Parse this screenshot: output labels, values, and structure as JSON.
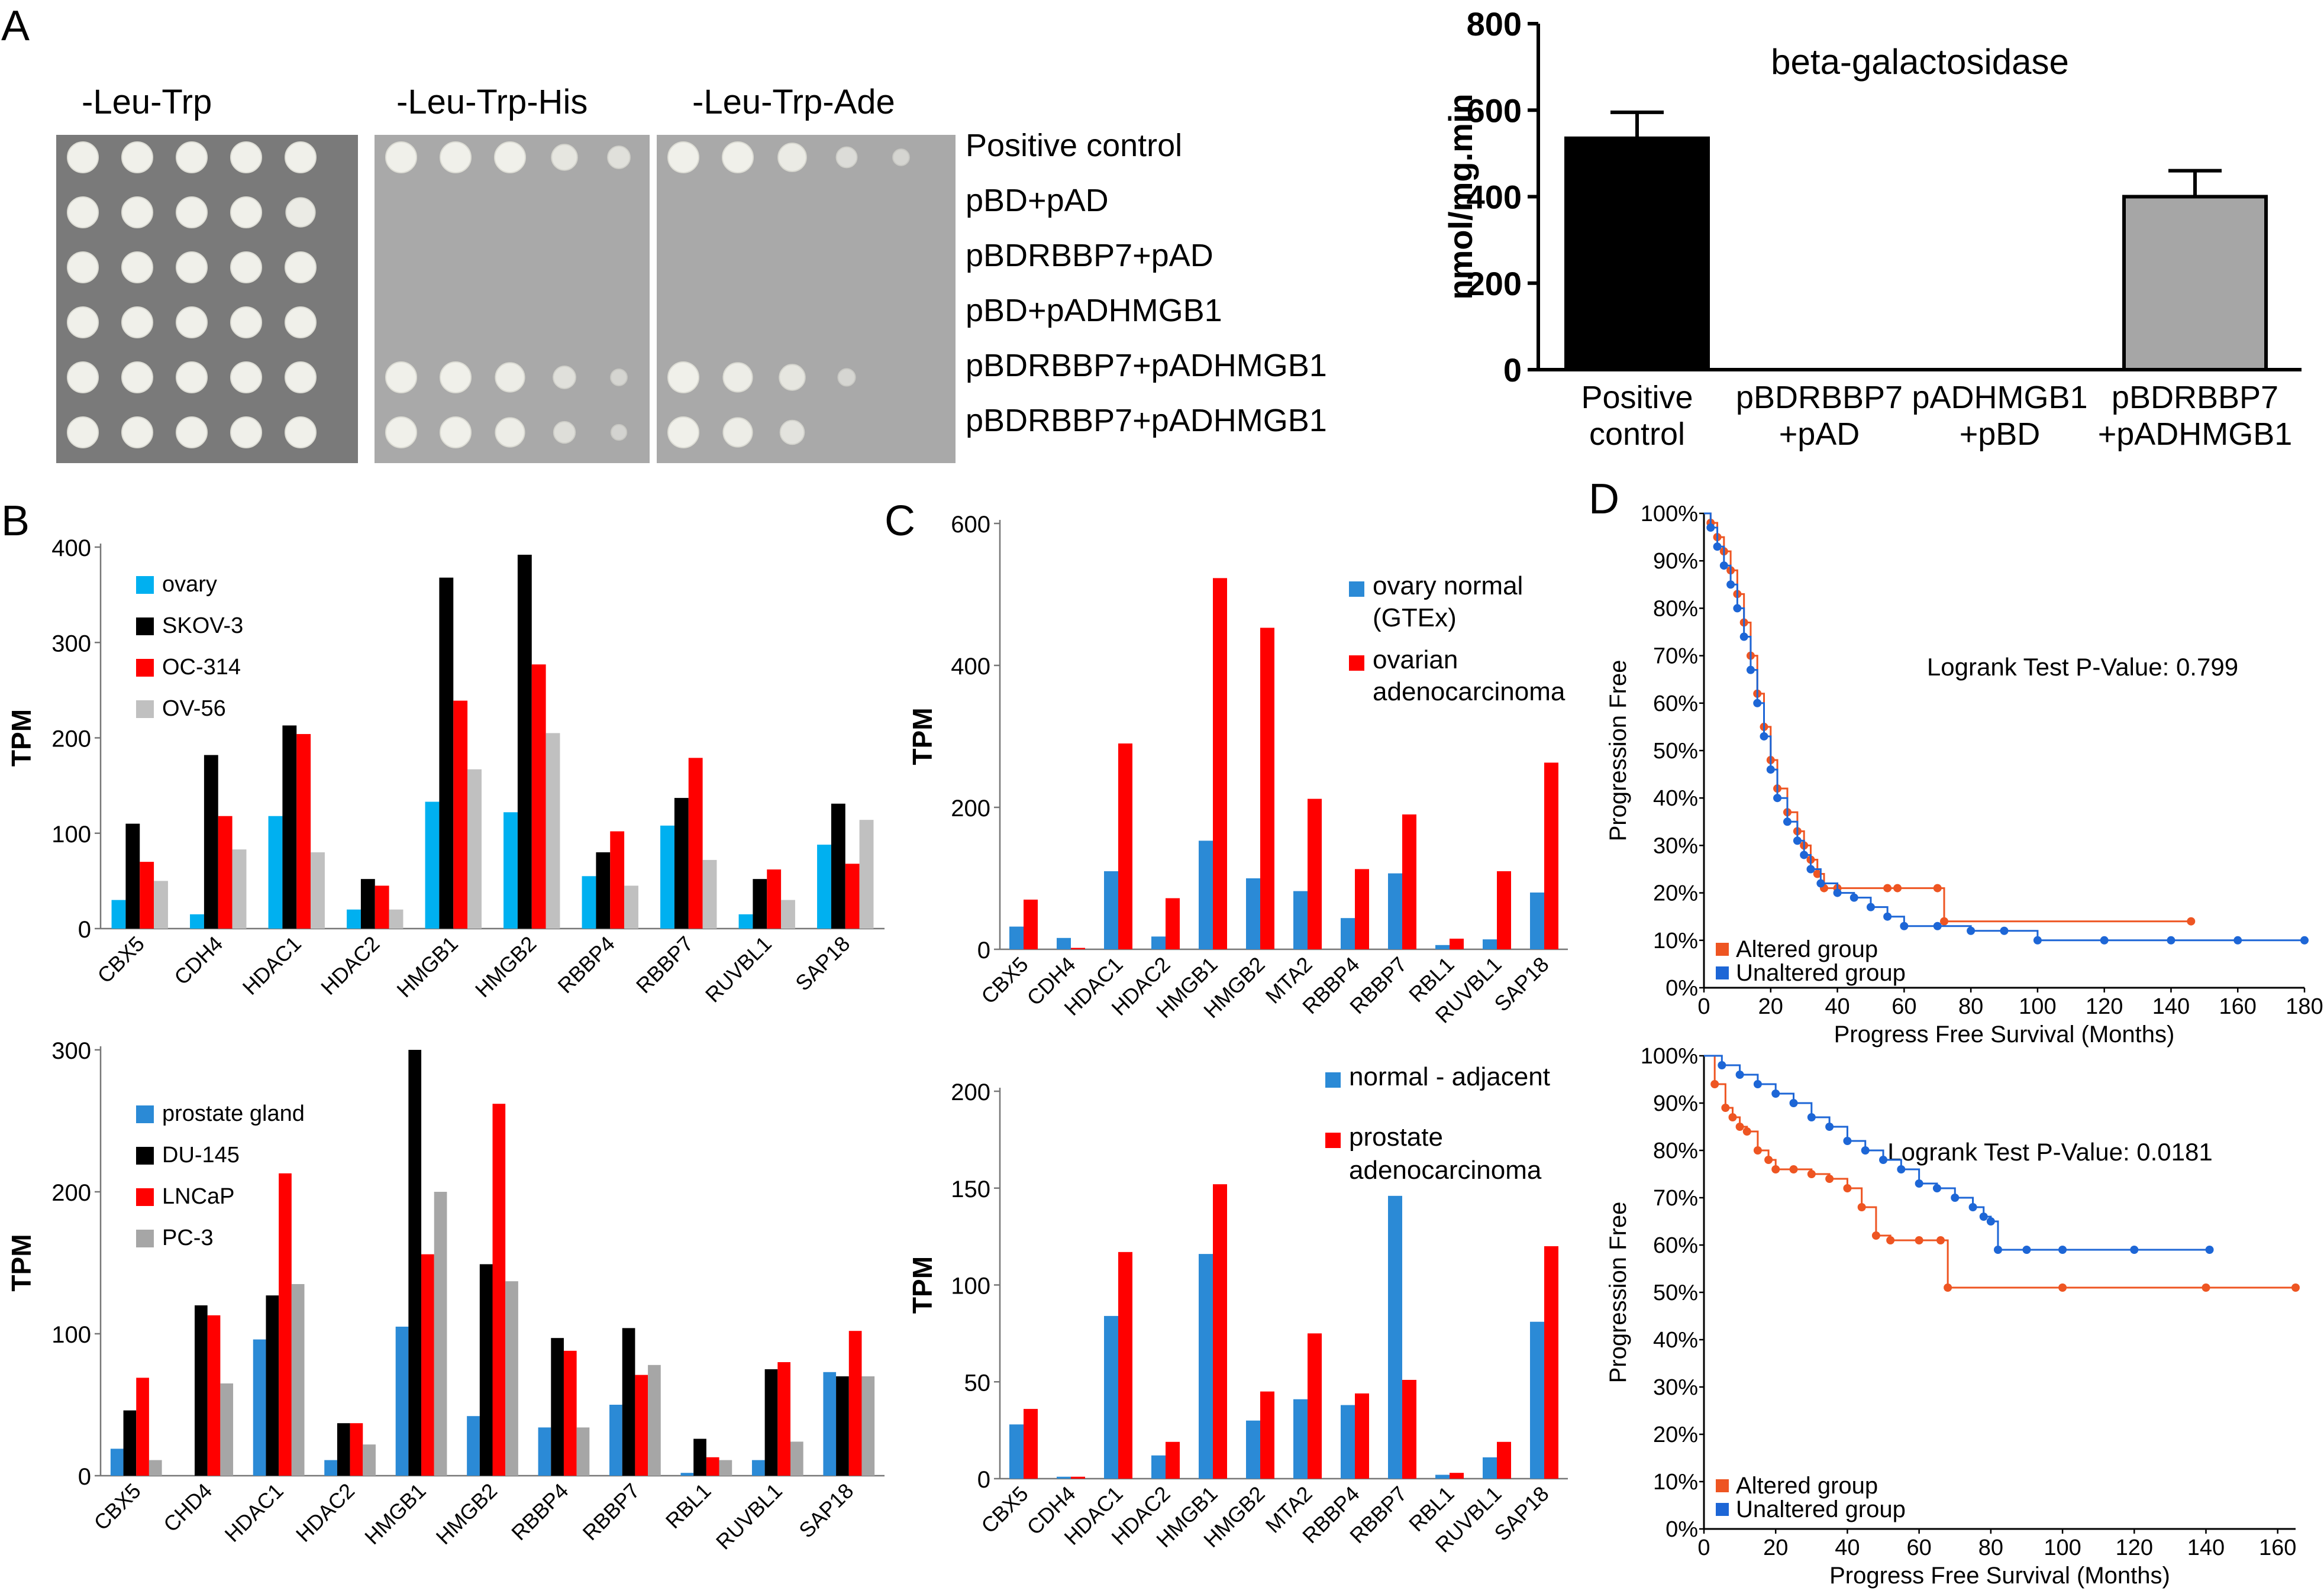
{
  "panel_labels": [
    "A",
    "B",
    "C",
    "D"
  ],
  "yeast": {
    "media": [
      "-Leu-Trp",
      "-Leu-Trp-His",
      "-Leu-Trp-Ade"
    ],
    "rows": [
      "Positive control",
      "pBD+pAD",
      "pBDRBBP7+pAD",
      "pBD+pADHMGB1",
      "pBDRBBP7+pADHMGB1",
      "pBDRBBP7+pADHMGB1"
    ],
    "growth": [
      [
        [
          1,
          1,
          1,
          1,
          1
        ],
        [
          1,
          1,
          1,
          0.7,
          0.5
        ],
        [
          1,
          1,
          0.85,
          0.4,
          0.15
        ]
      ],
      [
        [
          1,
          1,
          1,
          1,
          0.9
        ],
        [
          0,
          0,
          0,
          0,
          0
        ],
        [
          0,
          0,
          0,
          0,
          0
        ]
      ],
      [
        [
          1,
          1,
          1,
          1,
          1
        ],
        [
          0,
          0,
          0,
          0,
          0
        ],
        [
          0,
          0,
          0,
          0,
          0
        ]
      ],
      [
        [
          1,
          1,
          1,
          1,
          1
        ],
        [
          0,
          0,
          0,
          0,
          0
        ],
        [
          0,
          0,
          0,
          0,
          0
        ]
      ],
      [
        [
          1,
          1,
          1,
          1,
          1
        ],
        [
          1,
          1,
          0.9,
          0.5,
          0.15
        ],
        [
          1,
          0.9,
          0.7,
          0.2,
          0
        ]
      ],
      [
        [
          1,
          1,
          1,
          1,
          1
        ],
        [
          1,
          1,
          0.9,
          0.45,
          0.1
        ],
        [
          1,
          0.9,
          0.6,
          0,
          0
        ]
      ]
    ]
  },
  "chart_data": [
    {
      "id": "beta-gal",
      "type": "bar",
      "title": "beta-galactosidase",
      "ylabel": "nmol/mg.min",
      "ylim": [
        0,
        800
      ],
      "yticks": [
        0,
        200,
        400,
        600,
        800
      ],
      "categories": [
        [
          "Positive",
          "control"
        ],
        [
          "pBDRBBP7",
          "+pAD"
        ],
        [
          "pADHMGB1",
          "+pBD"
        ],
        [
          "pBDRBBP7",
          "+pADHMGB1"
        ]
      ],
      "values": [
        535,
        0,
        0,
        400
      ],
      "errors": [
        60,
        0,
        0,
        60
      ],
      "bar_colors": [
        "#000000",
        "#000000",
        "#000000",
        "#a6a6a6"
      ]
    },
    {
      "id": "B-ovary",
      "type": "bar",
      "ylabel": "TPM",
      "ylim": [
        0,
        400
      ],
      "yticks": [
        0,
        100,
        200,
        300,
        400
      ],
      "categories": [
        "CBX5",
        "CDH4",
        "HDAC1",
        "HDAC2",
        "HMGB1",
        "HMGB2",
        "RBBP4",
        "RBBP7",
        "RUVBL1",
        "SAP18"
      ],
      "series": [
        {
          "name": "ovary",
          "color": "#00b0f0",
          "values": [
            30,
            15,
            118,
            20,
            133,
            122,
            55,
            108,
            15,
            88
          ]
        },
        {
          "name": "SKOV-3",
          "color": "#000000",
          "values": [
            110,
            182,
            213,
            52,
            368,
            392,
            80,
            137,
            52,
            131
          ]
        },
        {
          "name": "OC-314",
          "color": "#ff0000",
          "values": [
            70,
            118,
            204,
            45,
            239,
            277,
            102,
            179,
            62,
            68
          ]
        },
        {
          "name": "OV-56",
          "color": "#c0c0c0",
          "values": [
            50,
            83,
            80,
            20,
            167,
            205,
            45,
            72,
            30,
            114
          ]
        }
      ]
    },
    {
      "id": "B-prostate",
      "type": "bar",
      "ylabel": "TPM",
      "ylim": [
        0,
        300
      ],
      "yticks": [
        0,
        100,
        200,
        300
      ],
      "categories": [
        "CBX5",
        "CHD4",
        "HDAC1",
        "HDAC2",
        "HMGB1",
        "HMGB2",
        "RBBP4",
        "RBBP7",
        "RBL1",
        "RUVBL1",
        "SAP18"
      ],
      "series": [
        {
          "name": "prostate gland",
          "color": "#2b8ad6",
          "values": [
            19,
            0,
            96,
            11,
            105,
            42,
            34,
            50,
            2,
            11,
            73
          ]
        },
        {
          "name": "DU-145",
          "color": "#000000",
          "values": [
            46,
            120,
            127,
            37,
            300,
            149,
            97,
            104,
            26,
            75,
            70
          ]
        },
        {
          "name": "LNCaP",
          "color": "#ff0000",
          "values": [
            69,
            113,
            213,
            37,
            156,
            262,
            88,
            71,
            13,
            80,
            102
          ]
        },
        {
          "name": "PC-3",
          "color": "#a6a6a6",
          "values": [
            11,
            65,
            135,
            22,
            200,
            137,
            34,
            78,
            11,
            24,
            70
          ]
        }
      ]
    },
    {
      "id": "C-ovary",
      "type": "bar",
      "ylabel": "TPM",
      "ylim": [
        0,
        600
      ],
      "yticks": [
        0,
        200,
        400,
        600
      ],
      "categories": [
        "CBX5",
        "CDH4",
        "HDAC1",
        "HDAC2",
        "HMGB1",
        "HMGB2",
        "MTA2",
        "RBBP4",
        "RBBP7",
        "RBL1",
        "RUVBL1",
        "SAP18"
      ],
      "series": [
        {
          "name": "ovary normal (GTEx)",
          "label_lines": [
            "ovary normal",
            "(GTEx)"
          ],
          "color": "#2b8ad6",
          "values": [
            32,
            16,
            110,
            18,
            153,
            100,
            82,
            44,
            107,
            6,
            14,
            80
          ]
        },
        {
          "name": "ovarian adenocarcinoma",
          "label_lines": [
            "ovarian",
            "adenocarcinoma"
          ],
          "color": "#ff0000",
          "values": [
            70,
            2,
            290,
            72,
            523,
            453,
            212,
            113,
            190,
            15,
            110,
            263
          ]
        }
      ]
    },
    {
      "id": "C-prostate",
      "type": "bar",
      "ylabel": "TPM",
      "ylim": [
        0,
        200
      ],
      "yticks": [
        0,
        50,
        100,
        150,
        200
      ],
      "categories": [
        "CBX5",
        "CDH4",
        "HDAC1",
        "HDAC2",
        "HMGB1",
        "HMGB2",
        "MTA2",
        "RBBP4",
        "RBBP7",
        "RBL1",
        "RUVBL1",
        "SAP18"
      ],
      "series": [
        {
          "name": "normal - adjacent",
          "label_lines": [
            "normal - adjacent"
          ],
          "color": "#2b8ad6",
          "values": [
            28,
            1,
            84,
            12,
            116,
            30,
            41,
            38,
            146,
            2,
            11,
            81
          ]
        },
        {
          "name": "prostate adenocarcinoma",
          "label_lines": [
            "prostate",
            "adenocarcinoma"
          ],
          "color": "#ff0000",
          "values": [
            36,
            1,
            117,
            19,
            152,
            45,
            75,
            44,
            51,
            3,
            19,
            120
          ]
        }
      ]
    },
    {
      "id": "D-ovary",
      "type": "line",
      "title": "Logrank Test P-Value: 0.799",
      "xlabel": "Progress Free Survival (Months)",
      "ylabel": "Progression Free",
      "xlim": [
        0,
        180
      ],
      "xticks": [
        0,
        20,
        40,
        60,
        80,
        100,
        120,
        140,
        160,
        180
      ],
      "ylim": [
        0,
        100
      ],
      "yticks": [
        0,
        10,
        20,
        30,
        40,
        50,
        60,
        70,
        80,
        90,
        100
      ],
      "series": [
        {
          "name": "Altered group",
          "color": "#ee5522",
          "x": [
            0,
            2,
            4,
            6,
            8,
            10,
            12,
            14,
            16,
            18,
            20,
            22,
            25,
            28,
            30,
            32,
            34,
            36,
            40,
            55,
            58,
            70,
            72,
            146
          ],
          "y": [
            100,
            98,
            95,
            92,
            88,
            83,
            77,
            70,
            62,
            55,
            48,
            42,
            37,
            33,
            30,
            27,
            24,
            21,
            21,
            21,
            21,
            21,
            14,
            14
          ]
        },
        {
          "name": "Unaltered group",
          "color": "#1d66d6",
          "x": [
            0,
            2,
            4,
            6,
            8,
            10,
            12,
            14,
            16,
            18,
            20,
            22,
            25,
            28,
            30,
            32,
            35,
            40,
            45,
            50,
            55,
            60,
            70,
            80,
            90,
            100,
            120,
            140,
            160,
            180
          ],
          "y": [
            100,
            97,
            93,
            89,
            85,
            80,
            74,
            67,
            60,
            53,
            46,
            40,
            35,
            31,
            28,
            25,
            22,
            20,
            19,
            17,
            15,
            13,
            13,
            12,
            12,
            10,
            10,
            10,
            10,
            10
          ]
        }
      ]
    },
    {
      "id": "D-prostate",
      "type": "line",
      "title": "Logrank Test P-Value: 0.0181",
      "xlabel": "Progress Free Survival (Months)",
      "ylabel": "Progression Free",
      "xlim": [
        0,
        165
      ],
      "xticks": [
        0,
        20,
        40,
        60,
        80,
        100,
        120,
        140,
        160
      ],
      "ylim": [
        0,
        100
      ],
      "yticks": [
        0,
        10,
        20,
        30,
        40,
        50,
        60,
        70,
        80,
        90,
        100
      ],
      "series": [
        {
          "name": "Altered group",
          "color": "#ee5522",
          "x": [
            0,
            3,
            6,
            8,
            10,
            12,
            15,
            18,
            20,
            25,
            30,
            35,
            40,
            44,
            48,
            52,
            60,
            66,
            68,
            100,
            140,
            165
          ],
          "y": [
            100,
            94,
            89,
            87,
            85,
            84,
            80,
            78,
            76,
            76,
            75,
            74,
            72,
            68,
            62,
            61,
            61,
            61,
            51,
            51,
            51,
            51
          ]
        },
        {
          "name": "Unaltered group",
          "color": "#1d66d6",
          "x": [
            0,
            5,
            10,
            15,
            20,
            25,
            30,
            35,
            40,
            45,
            50,
            55,
            60,
            65,
            70,
            75,
            78,
            80,
            82,
            90,
            100,
            120,
            141
          ],
          "y": [
            100,
            98,
            96,
            94,
            92,
            90,
            87,
            85,
            82,
            80,
            78,
            76,
            73,
            72,
            70,
            68,
            66,
            65,
            59,
            59,
            59,
            59,
            59
          ]
        }
      ]
    }
  ]
}
